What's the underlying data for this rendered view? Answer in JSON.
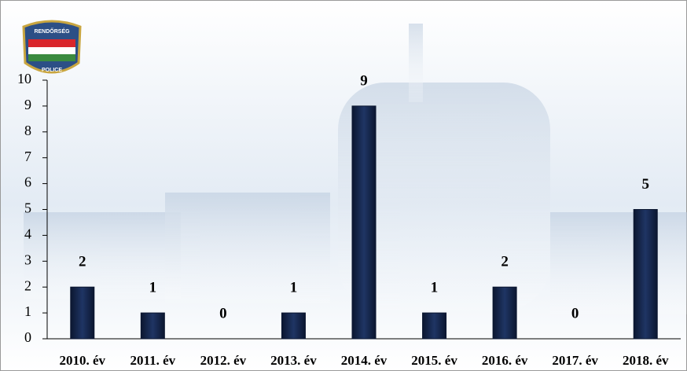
{
  "logo": {
    "top": "RENDŐRSÉG",
    "bottom": "POLICE"
  },
  "chart_data": {
    "type": "bar",
    "categories": [
      "2010. év",
      "2011. év",
      "2012. év",
      "2013. év",
      "2014. év",
      "2015. év",
      "2016. év",
      "2017. év",
      "2018. év"
    ],
    "values": [
      2,
      1,
      0,
      1,
      9,
      1,
      2,
      0,
      5
    ],
    "color": "#1f3564",
    "ylim": [
      0,
      10
    ],
    "yticks": [
      0,
      1,
      2,
      3,
      4,
      5,
      6,
      7,
      8,
      9,
      10
    ],
    "grid": false,
    "data_labels": true
  }
}
